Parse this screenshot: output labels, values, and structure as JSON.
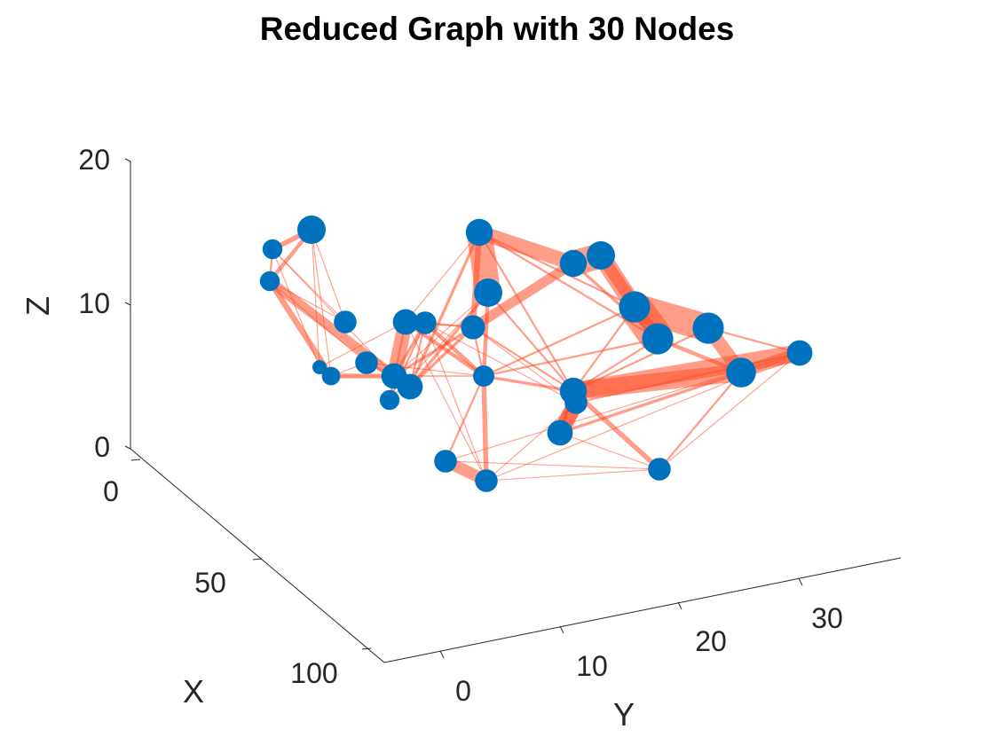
{
  "chart_data": {
    "type": "network-3d",
    "title": "Reduced Graph with 30 Nodes",
    "xlabel": "X",
    "ylabel": "Y",
    "zlabel": "Z",
    "x_ticks": [
      "0",
      "50",
      "100"
    ],
    "y_ticks": [
      "0",
      "10",
      "20",
      "30"
    ],
    "z_ticks": [
      "0",
      "10",
      "20"
    ],
    "zlim": [
      0,
      20
    ],
    "grid": false,
    "node_color": "#0072BD",
    "edge_color": "#FF4D26",
    "nodes": [
      {
        "id": 1,
        "size": 2.0
      },
      {
        "id": 2,
        "size": 1.4
      },
      {
        "id": 3,
        "size": 1.4
      },
      {
        "id": 4,
        "size": 1.6
      },
      {
        "id": 5,
        "size": 1.0
      },
      {
        "id": 6,
        "size": 1.3
      },
      {
        "id": 7,
        "size": 1.6
      },
      {
        "id": 8,
        "size": 1.8
      },
      {
        "id": 9,
        "size": 1.4
      },
      {
        "id": 10,
        "size": 1.8
      },
      {
        "id": 11,
        "size": 1.8
      },
      {
        "id": 12,
        "size": 1.6
      },
      {
        "id": 13,
        "size": 1.7
      },
      {
        "id": 14,
        "size": 1.5
      },
      {
        "id": 15,
        "size": 2.0
      },
      {
        "id": 16,
        "size": 1.9
      },
      {
        "id": 17,
        "size": 1.9
      },
      {
        "id": 18,
        "size": 2.0
      },
      {
        "id": 19,
        "size": 2.2
      },
      {
        "id": 20,
        "size": 2.2
      },
      {
        "id": 21,
        "size": 2.2
      },
      {
        "id": 22,
        "size": 2.1
      },
      {
        "id": 23,
        "size": 1.9
      },
      {
        "id": 24,
        "size": 1.6
      },
      {
        "id": 25,
        "size": 1.6
      },
      {
        "id": 26,
        "size": 1.6
      },
      {
        "id": 27,
        "size": 1.8
      },
      {
        "id": 28,
        "size": 1.6
      },
      {
        "id": 29,
        "size": 1.8
      },
      {
        "id": 30,
        "size": 1.4
      }
    ],
    "edges": [
      {
        "s": 1,
        "t": 2,
        "w": 5
      },
      {
        "s": 1,
        "t": 3,
        "w": 4
      },
      {
        "s": 2,
        "t": 3,
        "w": 2
      },
      {
        "s": 1,
        "t": 4,
        "w": 1
      },
      {
        "s": 2,
        "t": 4,
        "w": 1
      },
      {
        "s": 3,
        "t": 4,
        "w": 1
      },
      {
        "s": 1,
        "t": 5,
        "w": 1
      },
      {
        "s": 2,
        "t": 5,
        "w": 1
      },
      {
        "s": 1,
        "t": 6,
        "w": 1
      },
      {
        "s": 3,
        "t": 6,
        "w": 6
      },
      {
        "s": 3,
        "t": 8,
        "w": 10
      },
      {
        "s": 6,
        "t": 7,
        "w": 1
      },
      {
        "s": 6,
        "t": 8,
        "w": 5
      },
      {
        "s": 7,
        "t": 8,
        "w": 3
      },
      {
        "s": 8,
        "t": 11,
        "w": 15
      },
      {
        "s": 8,
        "t": 10,
        "w": 4
      },
      {
        "s": 8,
        "t": 12,
        "w": 3
      },
      {
        "s": 8,
        "t": 13,
        "w": 3
      },
      {
        "s": 8,
        "t": 14,
        "w": 1
      },
      {
        "s": 8,
        "t": 15,
        "w": 1
      },
      {
        "s": 10,
        "t": 15,
        "w": 3
      },
      {
        "s": 10,
        "t": 16,
        "w": 3
      },
      {
        "s": 10,
        "t": 13,
        "w": 3
      },
      {
        "s": 10,
        "t": 12,
        "w": 2
      },
      {
        "s": 11,
        "t": 12,
        "w": 1
      },
      {
        "s": 11,
        "t": 13,
        "w": 1
      },
      {
        "s": 12,
        "t": 13,
        "w": 2
      },
      {
        "s": 13,
        "t": 17,
        "w": 10
      },
      {
        "s": 13,
        "t": 16,
        "w": 6
      },
      {
        "s": 14,
        "t": 15,
        "w": 4
      },
      {
        "s": 15,
        "t": 16,
        "w": 26
      },
      {
        "s": 16,
        "t": 17,
        "w": 15
      },
      {
        "s": 17,
        "t": 18,
        "w": 26
      },
      {
        "s": 18,
        "t": 19,
        "w": 18
      },
      {
        "s": 18,
        "t": 20,
        "w": 12
      },
      {
        "s": 19,
        "t": 20,
        "w": 34
      },
      {
        "s": 19,
        "t": 21,
        "w": 28
      },
      {
        "s": 21,
        "t": 22,
        "w": 14
      },
      {
        "s": 20,
        "t": 22,
        "w": 4
      },
      {
        "s": 22,
        "t": 23,
        "w": 18
      },
      {
        "s": 22,
        "t": 29,
        "w": 12
      },
      {
        "s": 22,
        "t": 27,
        "w": 3
      },
      {
        "s": 23,
        "t": 29,
        "w": 18
      },
      {
        "s": 23,
        "t": 24,
        "w": 12
      },
      {
        "s": 24,
        "t": 27,
        "w": 16
      },
      {
        "s": 24,
        "t": 30,
        "w": 16
      },
      {
        "s": 27,
        "t": 28,
        "w": 1
      },
      {
        "s": 28,
        "t": 29,
        "w": 1
      },
      {
        "s": 28,
        "t": 23,
        "w": 5
      },
      {
        "s": 28,
        "t": 25,
        "w": 1
      },
      {
        "s": 25,
        "t": 26,
        "w": 12
      },
      {
        "s": 26,
        "t": 28,
        "w": 1
      },
      {
        "s": 26,
        "t": 14,
        "w": 5
      },
      {
        "s": 25,
        "t": 14,
        "w": 2
      },
      {
        "s": 14,
        "t": 19,
        "w": 2
      },
      {
        "s": 14,
        "t": 20,
        "w": 2
      },
      {
        "s": 14,
        "t": 23,
        "w": 3
      },
      {
        "s": 14,
        "t": 12,
        "w": 4
      },
      {
        "s": 14,
        "t": 11,
        "w": 4
      },
      {
        "s": 11,
        "t": 9,
        "w": 2
      },
      {
        "s": 9,
        "t": 12,
        "w": 2
      },
      {
        "s": 9,
        "t": 15,
        "w": 1
      },
      {
        "s": 13,
        "t": 14,
        "w": 2
      },
      {
        "s": 15,
        "t": 23,
        "w": 2
      },
      {
        "s": 16,
        "t": 19,
        "w": 2
      },
      {
        "s": 16,
        "t": 20,
        "w": 2
      },
      {
        "s": 17,
        "t": 20,
        "w": 3
      },
      {
        "s": 19,
        "t": 23,
        "w": 2
      },
      {
        "s": 20,
        "t": 23,
        "w": 2
      },
      {
        "s": 21,
        "t": 23,
        "w": 2
      },
      {
        "s": 21,
        "t": 29,
        "w": 2
      },
      {
        "s": 22,
        "t": 28,
        "w": 2
      },
      {
        "s": 23,
        "t": 27,
        "w": 3
      },
      {
        "s": 23,
        "t": 30,
        "w": 2
      },
      {
        "s": 24,
        "t": 29,
        "w": 2
      },
      {
        "s": 25,
        "t": 29,
        "w": 1
      },
      {
        "s": 26,
        "t": 29,
        "w": 1
      },
      {
        "s": 26,
        "t": 24,
        "w": 1
      },
      {
        "s": 12,
        "t": 26,
        "w": 1
      },
      {
        "s": 11,
        "t": 26,
        "w": 1
      },
      {
        "s": 12,
        "t": 24,
        "w": 1
      },
      {
        "s": 13,
        "t": 24,
        "w": 1
      },
      {
        "s": 11,
        "t": 16,
        "w": 1
      },
      {
        "s": 8,
        "t": 9,
        "w": 1
      },
      {
        "s": 6,
        "t": 14,
        "w": 1
      },
      {
        "s": 7,
        "t": 14,
        "w": 1
      },
      {
        "s": 3,
        "t": 7,
        "w": 1
      },
      {
        "s": 2,
        "t": 8,
        "w": 1
      },
      {
        "s": 5,
        "t": 11,
        "w": 1
      },
      {
        "s": 13,
        "t": 23,
        "w": 2
      },
      {
        "s": 16,
        "t": 23,
        "w": 2
      }
    ]
  }
}
